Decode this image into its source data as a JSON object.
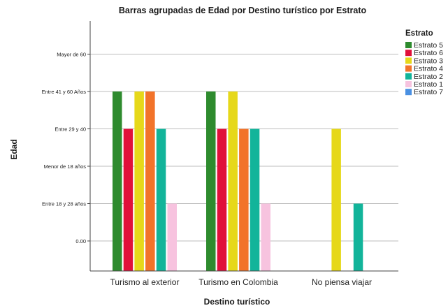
{
  "chart_data": {
    "type": "bar",
    "title": "Barras agrupadas de Edad por Destino turístico por Estrato",
    "xlabel": "Destino turístico",
    "ylabel": "Edad",
    "y_tick_labels": [
      "0.00",
      "Entre 18 y 28 años",
      "Menor de 18 años",
      "Entre 29 y 40",
      "Entre 41 y 60 Años",
      "Mayor de 60"
    ],
    "ylim": [
      -1,
      5.8
    ],
    "categories": [
      "Turismo al exterior",
      "Turismo en Colombia",
      "No piensa viajar"
    ],
    "legend_title": "Estrato",
    "legend_position": "right",
    "grid": true,
    "series": [
      {
        "name": "Estrato 5",
        "color": "#2e8b2e",
        "values": [
          4,
          4,
          null
        ]
      },
      {
        "name": "Estrato 6",
        "color": "#e0103a",
        "values": [
          3,
          3,
          null
        ]
      },
      {
        "name": "Estrato 3",
        "color": "#e6d81a",
        "values": [
          4,
          4,
          3
        ]
      },
      {
        "name": "Estrato 4",
        "color": "#f2732a",
        "values": [
          4,
          3,
          null
        ]
      },
      {
        "name": "Estrato 2",
        "color": "#12b49a",
        "values": [
          3,
          3,
          1
        ]
      },
      {
        "name": "Estrato 1",
        "color": "#f7c3df",
        "values": [
          1,
          1,
          null
        ]
      },
      {
        "name": "Estrato 7",
        "color": "#4a90e2",
        "values": [
          null,
          null,
          null
        ]
      }
    ]
  }
}
